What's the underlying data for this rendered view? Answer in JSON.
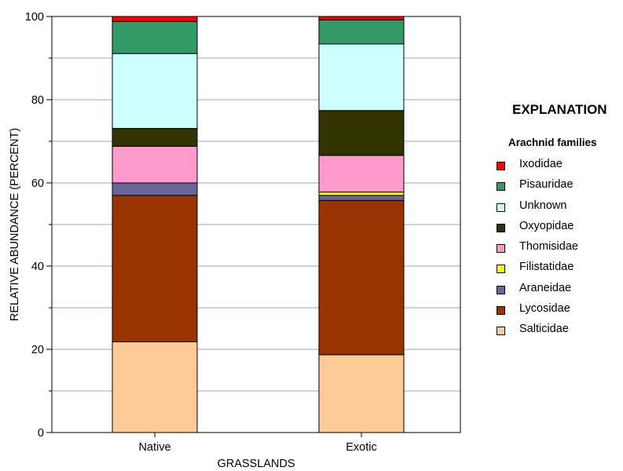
{
  "chart_data": {
    "type": "bar",
    "stacked": true,
    "categories": [
      "Native",
      "Exotic"
    ],
    "xlabel": "GRASSLANDS",
    "ylabel": "RELATIVE ABUNDANCE (PERCENT)",
    "ylim": [
      0,
      100
    ],
    "yticks": [
      0,
      20,
      40,
      60,
      80,
      100
    ],
    "grid": "horizontal, every 10",
    "legend": {
      "title": "EXPLANATION",
      "subtitle": "Arachnid families",
      "placement": "right"
    },
    "series": [
      {
        "name": "Salticidae",
        "color": "#FDCB98",
        "values": [
          21.8,
          18.7
        ]
      },
      {
        "name": "Lycosidae",
        "color": "#993300",
        "values": [
          35.2,
          37.1
        ]
      },
      {
        "name": "Araneidae",
        "color": "#6B6699",
        "values": [
          3.0,
          1.2
        ]
      },
      {
        "name": "Filistatidae",
        "color": "#FFFF00",
        "values": [
          0.0,
          0.8
        ]
      },
      {
        "name": "Thomisidae",
        "color": "#FF99CC",
        "values": [
          8.8,
          8.8
        ]
      },
      {
        "name": "Oxyopidae",
        "color": "#333300",
        "values": [
          4.3,
          10.8
        ]
      },
      {
        "name": "Unknown",
        "color": "#CCFFFF",
        "values": [
          18.0,
          16.0
        ]
      },
      {
        "name": "Pisauridae",
        "color": "#339966",
        "values": [
          7.7,
          5.8
        ]
      },
      {
        "name": "Ixodidae",
        "color": "#FF0000",
        "values": [
          1.2,
          0.8
        ]
      }
    ]
  }
}
